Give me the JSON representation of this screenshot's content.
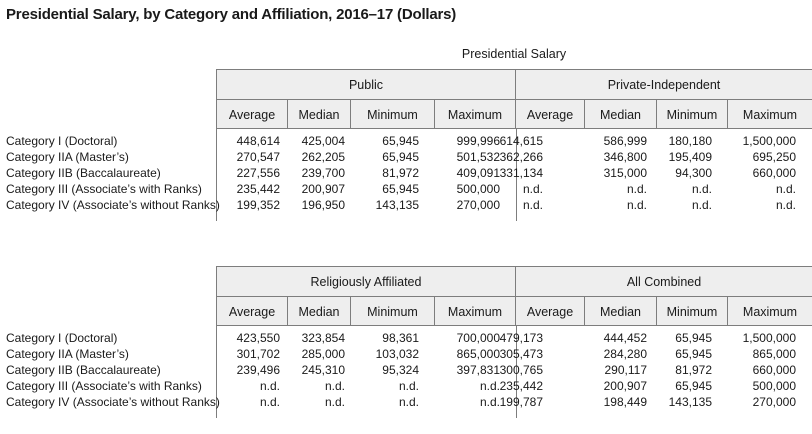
{
  "title": "Presidential Salary, by Category and Affiliation, 2016–17 (Dollars)",
  "supertitle": "Presidential Salary",
  "measures": [
    "Average",
    "Median",
    "Minimum",
    "Maximum"
  ],
  "categories": [
    "Category I (Doctoral)",
    "Category IIA (Master’s)",
    "Category IIB (Baccalaureate)",
    "Category III (Associate’s with Ranks)",
    "Category IV (Associate’s without Ranks)"
  ],
  "tables": [
    {
      "left": {
        "name": "Public",
        "rows": [
          [
            "448,614",
            "425,004",
            "65,945",
            "999,996"
          ],
          [
            "270,547",
            "262,205",
            "65,945",
            "501,532"
          ],
          [
            "227,556",
            "239,700",
            "81,972",
            "409,091"
          ],
          [
            "235,442",
            "200,907",
            "65,945",
            "500,000"
          ],
          [
            "199,352",
            "196,950",
            "143,135",
            "270,000"
          ]
        ]
      },
      "right": {
        "name": "Private-Independent",
        "rows": [
          [
            "614,615",
            "586,999",
            "180,180",
            "1,500,000"
          ],
          [
            "362,266",
            "346,800",
            "195,409",
            "695,250"
          ],
          [
            "331,134",
            "315,000",
            "94,300",
            "660,000"
          ],
          [
            "n.d.",
            "n.d.",
            "n.d.",
            "n.d."
          ],
          [
            "n.d.",
            "n.d.",
            "n.d.",
            "n.d."
          ]
        ]
      }
    },
    {
      "left": {
        "name": "Religiously Affiliated",
        "rows": [
          [
            "423,550",
            "323,854",
            "98,361",
            "700,000"
          ],
          [
            "301,702",
            "285,000",
            "103,032",
            "865,000"
          ],
          [
            "239,496",
            "245,310",
            "95,324",
            "397,831"
          ],
          [
            "n.d.",
            "n.d.",
            "n.d.",
            "n.d."
          ],
          [
            "n.d.",
            "n.d.",
            "n.d.",
            "n.d."
          ]
        ]
      },
      "right": {
        "name": "All Combined",
        "rows": [
          [
            "479,173",
            "444,452",
            "65,945",
            "1,500,000"
          ],
          [
            "305,473",
            "284,280",
            "65,945",
            "865,000"
          ],
          [
            "300,765",
            "290,117",
            "81,972",
            "660,000"
          ],
          [
            "235,442",
            "200,907",
            "65,945",
            "500,000"
          ],
          [
            "199,787",
            "198,449",
            "143,135",
            "270,000"
          ]
        ]
      }
    }
  ]
}
